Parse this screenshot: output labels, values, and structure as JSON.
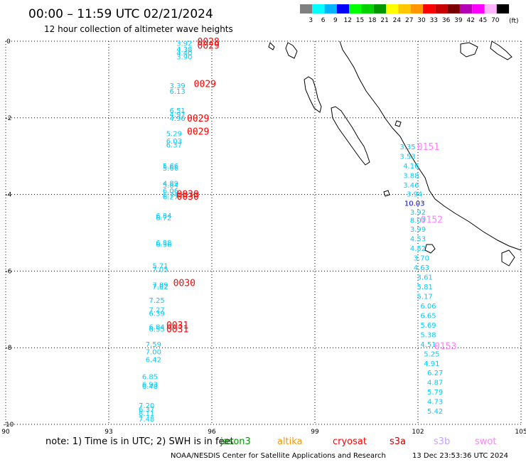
{
  "title": "00:00 – 11:59 UTC 02/21/2024",
  "subtitle": "12 hour collection of altimeter wave heights",
  "legend": {
    "unit": "(ft)",
    "bins": [
      {
        "label": "3",
        "color": "#808080"
      },
      {
        "label": "6",
        "color": "#00ffff"
      },
      {
        "label": "9",
        "color": "#00b4ff"
      },
      {
        "label": "12",
        "color": "#0000ff"
      },
      {
        "label": "15",
        "color": "#00ff00"
      },
      {
        "label": "18",
        "color": "#00d200"
      },
      {
        "label": "21",
        "color": "#009600"
      },
      {
        "label": "24",
        "color": "#ffff00"
      },
      {
        "label": "27",
        "color": "#ffc800"
      },
      {
        "label": "30",
        "color": "#ff9600"
      },
      {
        "label": "33",
        "color": "#ff0000"
      },
      {
        "label": "36",
        "color": "#c80000"
      },
      {
        "label": "39",
        "color": "#780000"
      },
      {
        "label": "42",
        "color": "#b400b4"
      },
      {
        "label": "45",
        "color": "#ff00ff"
      },
      {
        "label": "70",
        "color": "#ffb4ff"
      },
      {
        "label": "",
        "color": "#000000"
      }
    ]
  },
  "axes": {
    "lon_ticks": [
      "90",
      "93",
      "96",
      "99",
      "102",
      "105"
    ],
    "lat_ticks": [
      "0",
      "-2",
      "-4",
      "-6",
      "-8",
      "-10"
    ]
  },
  "note": {
    "text": "note:  1) Time is in UTC; 2) SWH is in feet",
    "satellites": [
      {
        "name": "jason3",
        "color": "#009600"
      },
      {
        "name": "altika",
        "color": "#ff9600"
      },
      {
        "name": "cryosat",
        "color": "#ff0000"
      },
      {
        "name": "s3a",
        "color": "#c80000"
      },
      {
        "name": "s3b",
        "color": "#c8a0ff"
      },
      {
        "name": "swot",
        "color": "#ff80ff"
      }
    ]
  },
  "footer": {
    "credit": "NOAA/NESDIS Center for Satellite Applications and Research",
    "timestamp": "13 Dec 23:53:36 UTC 2024"
  },
  "chart_data": {
    "type": "scatter",
    "xlim": [
      90,
      105
    ],
    "ylim": [
      -10,
      0
    ],
    "grid": true,
    "tracks": [
      {
        "satellite": "cryosat",
        "color": "#00ccff",
        "points": [
          {
            "lon": 95.2,
            "lat": -0.05,
            "swh": "3.92"
          },
          {
            "lon": 95.2,
            "lat": -0.2,
            "swh": "4.38"
          },
          {
            "lon": 95.2,
            "lat": -0.3,
            "swh": "4.40"
          },
          {
            "lon": 95.2,
            "lat": -0.4,
            "swh": "3.90"
          },
          {
            "lon": 95.0,
            "lat": -1.15,
            "swh": "3.39"
          },
          {
            "lon": 95.0,
            "lat": -1.3,
            "swh": "6.13"
          },
          {
            "lon": 95.0,
            "lat": -1.8,
            "swh": "6.51"
          },
          {
            "lon": 95.0,
            "lat": -1.9,
            "swh": "4.97"
          },
          {
            "lon": 95.0,
            "lat": -2.0,
            "swh": "4.96"
          },
          {
            "lon": 94.9,
            "lat": -2.4,
            "swh": "5.29"
          },
          {
            "lon": 94.9,
            "lat": -2.6,
            "swh": "6.03"
          },
          {
            "lon": 94.9,
            "lat": -2.7,
            "swh": "6.37"
          },
          {
            "lon": 94.8,
            "lat": -3.25,
            "swh": "5.66"
          },
          {
            "lon": 94.8,
            "lat": -3.3,
            "swh": "5.66"
          },
          {
            "lon": 94.8,
            "lat": -3.7,
            "swh": "4.89"
          },
          {
            "lon": 94.8,
            "lat": -3.75,
            "swh": "5.84"
          },
          {
            "lon": 94.8,
            "lat": -3.9,
            "swh": "6.06"
          },
          {
            "lon": 94.8,
            "lat": -4.0,
            "swh": "6.74"
          },
          {
            "lon": 94.8,
            "lat": -4.05,
            "swh": "6.27"
          },
          {
            "lon": 94.6,
            "lat": -4.55,
            "swh": "6.84"
          },
          {
            "lon": 94.6,
            "lat": -4.6,
            "swh": "6.72"
          },
          {
            "lon": 94.6,
            "lat": -5.25,
            "swh": "6.88"
          },
          {
            "lon": 94.6,
            "lat": -5.3,
            "swh": "6.36"
          },
          {
            "lon": 94.5,
            "lat": -5.85,
            "swh": "5.71"
          },
          {
            "lon": 94.5,
            "lat": -5.95,
            "swh": "7.05"
          },
          {
            "lon": 94.5,
            "lat": -6.35,
            "swh": "7.89"
          },
          {
            "lon": 94.5,
            "lat": -6.4,
            "swh": "7.82"
          },
          {
            "lon": 94.4,
            "lat": -6.75,
            "swh": "7.25"
          },
          {
            "lon": 94.4,
            "lat": -7.0,
            "swh": "7.27"
          },
          {
            "lon": 94.4,
            "lat": -7.1,
            "swh": "6.39"
          },
          {
            "lon": 94.4,
            "lat": -7.45,
            "swh": "6.84"
          },
          {
            "lon": 94.4,
            "lat": -7.5,
            "swh": "6.55"
          },
          {
            "lon": 94.3,
            "lat": -7.9,
            "swh": "7.59"
          },
          {
            "lon": 94.3,
            "lat": -8.1,
            "swh": "7.00"
          },
          {
            "lon": 94.3,
            "lat": -8.3,
            "swh": "6.42"
          },
          {
            "lon": 94.2,
            "lat": -8.75,
            "swh": "6.85"
          },
          {
            "lon": 94.2,
            "lat": -8.95,
            "swh": "6.93"
          },
          {
            "lon": 94.2,
            "lat": -9.0,
            "swh": "6.48"
          },
          {
            "lon": 94.1,
            "lat": -9.5,
            "swh": "7.20"
          },
          {
            "lon": 94.1,
            "lat": -9.6,
            "swh": "6.37"
          },
          {
            "lon": 94.1,
            "lat": -9.7,
            "swh": "8.11"
          },
          {
            "lon": 94.1,
            "lat": -9.85,
            "swh": "7.48"
          }
        ],
        "times": [
          {
            "lon": 95.9,
            "lat": -0.0,
            "label": "0028"
          },
          {
            "lon": 95.9,
            "lat": -0.1,
            "label": "0029"
          },
          {
            "lon": 95.8,
            "lat": -1.1,
            "label": "0029"
          },
          {
            "lon": 95.6,
            "lat": -2.0,
            "label": "0029"
          },
          {
            "lon": 95.6,
            "lat": -2.35,
            "label": "0029"
          },
          {
            "lon": 95.3,
            "lat": -3.98,
            "label": "0030"
          },
          {
            "lon": 95.3,
            "lat": -4.04,
            "label": "0030"
          },
          {
            "lon": 95.2,
            "lat": -6.3,
            "label": "0030"
          },
          {
            "lon": 95.0,
            "lat": -7.4,
            "label": "0031"
          },
          {
            "lon": 95.0,
            "lat": -7.5,
            "label": "0031"
          }
        ]
      },
      {
        "satellite": "swot",
        "color": "#00ccff",
        "points": [
          {
            "lon": 101.7,
            "lat": -2.75,
            "swh": "3.35"
          },
          {
            "lon": 101.7,
            "lat": -3.0,
            "swh": "3.53"
          },
          {
            "lon": 101.8,
            "lat": -3.25,
            "swh": "4.16"
          },
          {
            "lon": 101.8,
            "lat": -3.5,
            "swh": "3.88"
          },
          {
            "lon": 101.8,
            "lat": -3.75,
            "swh": "3.46"
          },
          {
            "lon": 101.9,
            "lat": -3.98,
            "swh": "3.94"
          },
          {
            "lon": 101.9,
            "lat": -4.22,
            "swh": "10.03",
            "color": "#0000cc"
          },
          {
            "lon": 102.0,
            "lat": -4.45,
            "swh": "3.92"
          },
          {
            "lon": 102.0,
            "lat": -4.67,
            "swh": "8.07"
          },
          {
            "lon": 102.0,
            "lat": -4.9,
            "swh": "3.99"
          },
          {
            "lon": 102.0,
            "lat": -5.15,
            "swh": "4.53"
          },
          {
            "lon": 102.0,
            "lat": -5.4,
            "swh": "4.52"
          },
          {
            "lon": 102.1,
            "lat": -5.65,
            "swh": "3.70"
          },
          {
            "lon": 102.1,
            "lat": -5.9,
            "swh": "4.63"
          },
          {
            "lon": 102.2,
            "lat": -6.15,
            "swh": "3.61"
          },
          {
            "lon": 102.2,
            "lat": -6.4,
            "swh": "5.81"
          },
          {
            "lon": 102.2,
            "lat": -6.65,
            "swh": "5.17"
          },
          {
            "lon": 102.3,
            "lat": -6.9,
            "swh": "6.06"
          },
          {
            "lon": 102.3,
            "lat": -7.15,
            "swh": "6.65"
          },
          {
            "lon": 102.3,
            "lat": -7.4,
            "swh": "5.69"
          },
          {
            "lon": 102.3,
            "lat": -7.65,
            "swh": "5.38"
          },
          {
            "lon": 102.3,
            "lat": -7.9,
            "swh": "4.51"
          },
          {
            "lon": 102.4,
            "lat": -8.15,
            "swh": "5.25"
          },
          {
            "lon": 102.4,
            "lat": -8.4,
            "swh": "4.91"
          },
          {
            "lon": 102.5,
            "lat": -8.65,
            "swh": "6.27"
          },
          {
            "lon": 102.5,
            "lat": -8.9,
            "swh": "4.87"
          },
          {
            "lon": 102.5,
            "lat": -9.15,
            "swh": "5.79"
          },
          {
            "lon": 102.5,
            "lat": -9.4,
            "swh": "4.73"
          },
          {
            "lon": 102.5,
            "lat": -9.65,
            "swh": "5.42"
          }
        ],
        "times": [
          {
            "lon": 102.3,
            "lat": -2.75,
            "label": "0151"
          },
          {
            "lon": 102.4,
            "lat": -4.65,
            "label": "0152"
          },
          {
            "lon": 102.8,
            "lat": -7.95,
            "label": "0153"
          }
        ]
      }
    ]
  }
}
